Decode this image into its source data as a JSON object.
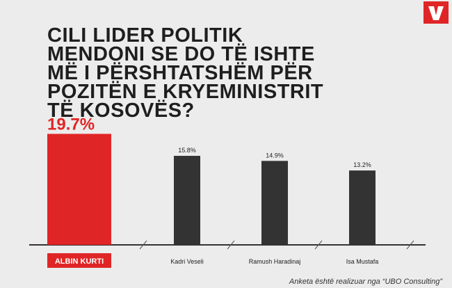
{
  "chart_data": {
    "type": "bar",
    "title": [
      "CILI LIDER POLITIK",
      "MENDONI SE DO TË ISHTE",
      "MË I PËRSHTATSHËM PËR",
      "POZITËN E KRYEMINISTRIT",
      "TË KOSOVËS?"
    ],
    "categories": [
      "ALBIN KURTI",
      "Kadri Veseli",
      "Ramush Haradinaj",
      "Isa Mustafa"
    ],
    "values": [
      19.7,
      15.8,
      14.9,
      13.2
    ],
    "value_labels": [
      "19.7%",
      "15.8%",
      "14.9%",
      "13.2%"
    ],
    "colors": [
      "#e02526",
      "#333333",
      "#333333",
      "#333333"
    ],
    "footnote": "Anketa është realizuar nga “UBO Consulting”"
  }
}
